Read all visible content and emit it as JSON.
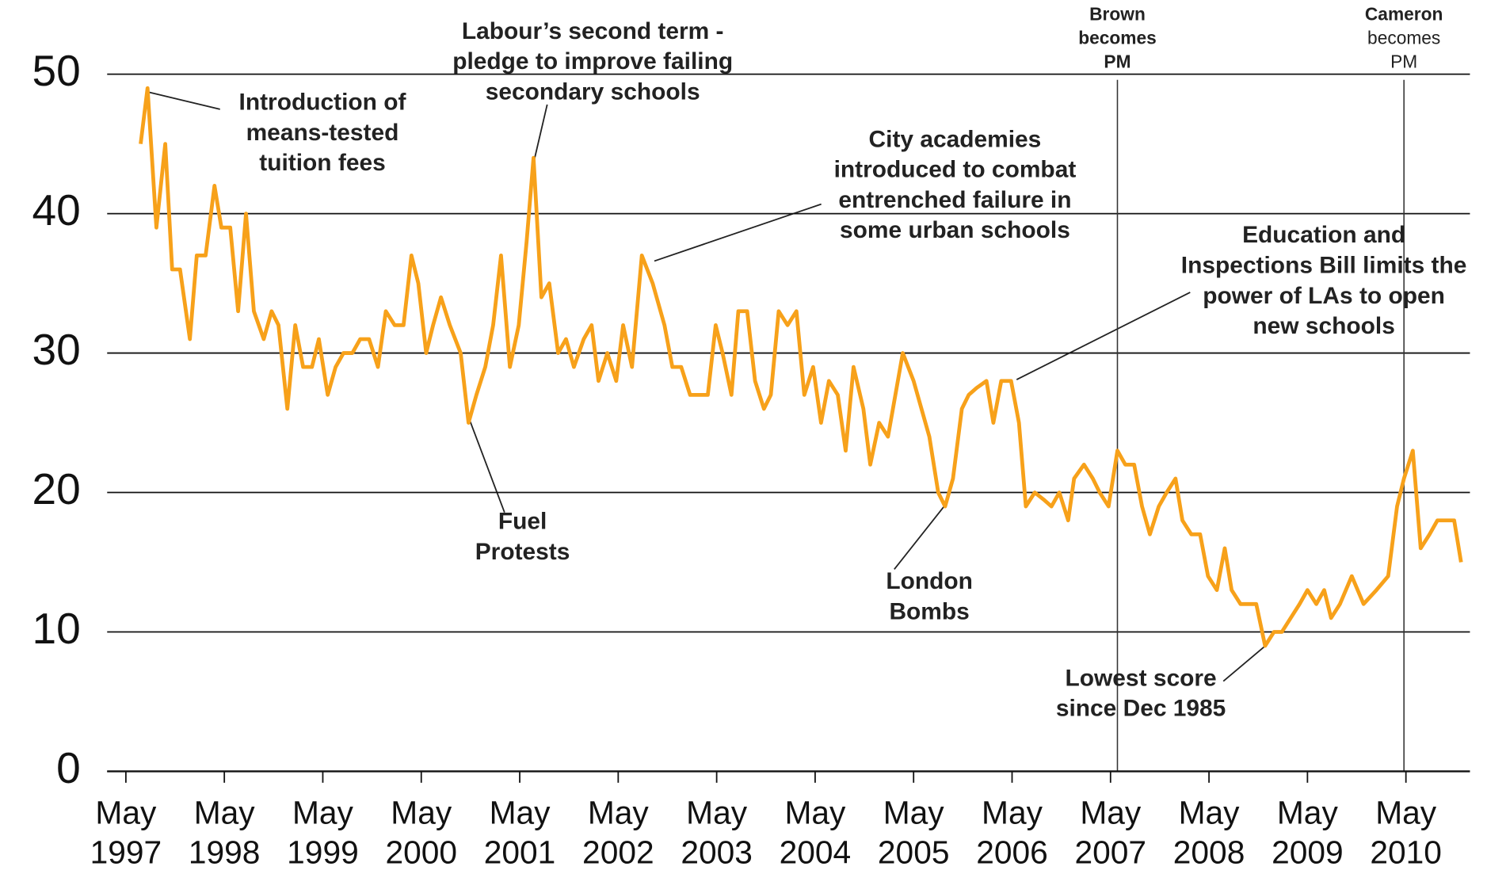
{
  "chart_data": {
    "type": "line",
    "x": [
      1997.48,
      1997.55,
      1997.64,
      1997.73,
      1997.8,
      1997.88,
      1997.98,
      1998.05,
      1998.14,
      1998.23,
      1998.3,
      1998.39,
      1998.47,
      1998.55,
      1998.63,
      1998.73,
      1998.81,
      1998.88,
      1998.97,
      1999.05,
      1999.13,
      1999.22,
      1999.29,
      1999.38,
      1999.46,
      1999.54,
      1999.63,
      1999.71,
      1999.8,
      1999.89,
      1999.97,
      2000.06,
      2000.15,
      2000.23,
      2000.3,
      2000.38,
      2000.45,
      2000.53,
      2000.62,
      2000.73,
      2000.81,
      2000.89,
      2000.98,
      2001.06,
      2001.14,
      2001.23,
      2001.32,
      2001.4,
      2001.47,
      2001.55,
      2001.63,
      2001.72,
      2001.8,
      2001.88,
      2001.98,
      2002.06,
      2002.13,
      2002.22,
      2002.31,
      2002.38,
      2002.47,
      2002.57,
      2002.68,
      2002.8,
      2002.88,
      2002.97,
      2003.06,
      2003.16,
      2003.24,
      2003.32,
      2003.39,
      2003.48,
      2003.55,
      2003.64,
      2003.72,
      2003.81,
      2003.88,
      2003.96,
      2004.05,
      2004.14,
      2004.22,
      2004.31,
      2004.39,
      2004.47,
      2004.56,
      2004.64,
      2004.72,
      2004.82,
      2004.89,
      2004.98,
      2005.07,
      2005.22,
      2005.33,
      2005.41,
      2005.49,
      2005.58,
      2005.65,
      2005.73,
      2005.82,
      2005.89,
      2005.97,
      2006.07,
      2006.14,
      2006.22,
      2006.32,
      2006.4,
      2006.47,
      2006.56,
      2006.65,
      2006.73,
      2006.81,
      2006.9,
      2006.96,
      2007.06,
      2007.15,
      2007.22,
      2007.31,
      2007.4,
      2007.48,
      2007.57,
      2007.65,
      2007.73,
      2007.82,
      2007.9,
      2007.99,
      2008.06,
      2008.15,
      2008.24,
      2008.32,
      2008.41,
      2008.49,
      2008.56,
      2008.65,
      2008.74,
      2008.81,
      2008.9,
      2008.99,
      2009.07,
      2009.16,
      2009.25,
      2009.33,
      2009.42,
      2009.5,
      2009.57,
      2009.66,
      2009.78,
      2009.9,
      2010.03,
      2010.15,
      2010.24,
      2010.31,
      2010.4,
      2010.48,
      2010.57,
      2010.65,
      2010.73,
      2010.82,
      2010.89
    ],
    "series": [
      {
        "color": "#f7a11a",
        "values": [
          45,
          49,
          39,
          45,
          36,
          36,
          31,
          37,
          37,
          42,
          39,
          39,
          33,
          40,
          33,
          31,
          33,
          32,
          26,
          32,
          29,
          29,
          31,
          27,
          29,
          30,
          30,
          31,
          31,
          29,
          33,
          32,
          32,
          37,
          35,
          30,
          32,
          34,
          32,
          30,
          25,
          27,
          29,
          32,
          37,
          29,
          32,
          38,
          44,
          34,
          35,
          30,
          31,
          29,
          31,
          32,
          28,
          30,
          28,
          32,
          29,
          37,
          35,
          32,
          29,
          29,
          27,
          27,
          27,
          32,
          30,
          27,
          33,
          33,
          28,
          26,
          27,
          33,
          32,
          33,
          27,
          29,
          25,
          28,
          27,
          23,
          29,
          26,
          22,
          25,
          24,
          30,
          28,
          26,
          24,
          20,
          19,
          21,
          26,
          27,
          27.5,
          28,
          25,
          28,
          28,
          25,
          19,
          20,
          19.5,
          19,
          20,
          18,
          21,
          22,
          21,
          20,
          19,
          23,
          22,
          22,
          19,
          17,
          19,
          20,
          21,
          18,
          17,
          17,
          14,
          13,
          16,
          13,
          12,
          12,
          12,
          9,
          10,
          10,
          11,
          12,
          13,
          12,
          13,
          11,
          12,
          14,
          12,
          13,
          14,
          19,
          21,
          23,
          16,
          17,
          18,
          18,
          18,
          15
        ]
      }
    ],
    "xlim": [
      1997.14,
      2010.98
    ],
    "xticks": [
      {
        "value": 1997.33,
        "label": "May 1997"
      },
      {
        "value": 1998.33,
        "label": "May 1998"
      },
      {
        "value": 1999.33,
        "label": "May 1999"
      },
      {
        "value": 2000.33,
        "label": "May 2000"
      },
      {
        "value": 2001.33,
        "label": "May 2001"
      },
      {
        "value": 2002.33,
        "label": "May 2002"
      },
      {
        "value": 2003.33,
        "label": "May 2003"
      },
      {
        "value": 2004.33,
        "label": "May 2004"
      },
      {
        "value": 2005.33,
        "label": "May 2005"
      },
      {
        "value": 2006.33,
        "label": "May 2006"
      },
      {
        "value": 2007.33,
        "label": "May 2007"
      },
      {
        "value": 2008.33,
        "label": "May 2008"
      },
      {
        "value": 2009.33,
        "label": "May 2009"
      },
      {
        "value": 2010.33,
        "label": "May 2010"
      }
    ],
    "ylim": [
      0,
      50
    ],
    "yticks": [
      0,
      10,
      20,
      30,
      40,
      50
    ],
    "grid": true,
    "events": [
      {
        "x": 2007.4,
        "lines": [
          "Brown",
          "becomes",
          "PM"
        ]
      },
      {
        "x": 2010.31,
        "lines": [
          "Cameron",
          "becomes",
          "PM"
        ]
      }
    ],
    "annotations": [
      {
        "lines": [
          "Introduction of",
          "means-tested",
          "tuition fees"
        ]
      },
      {
        "lines": [
          "Labour’s second term -",
          "pledge to improve failing",
          "secondary schools"
        ]
      },
      {
        "lines": [
          "City academies",
          "introduced to combat",
          "entrenched failure in",
          "some urban schools"
        ]
      },
      {
        "lines": [
          "Education and",
          "Inspections Bill limits the",
          "power of LAs to open",
          "new schools"
        ]
      },
      {
        "lines": [
          "Fuel",
          "Protests"
        ]
      },
      {
        "lines": [
          "London",
          "Bombs"
        ]
      },
      {
        "lines": [
          "Lowest score",
          "since Dec 1985"
        ]
      }
    ]
  }
}
